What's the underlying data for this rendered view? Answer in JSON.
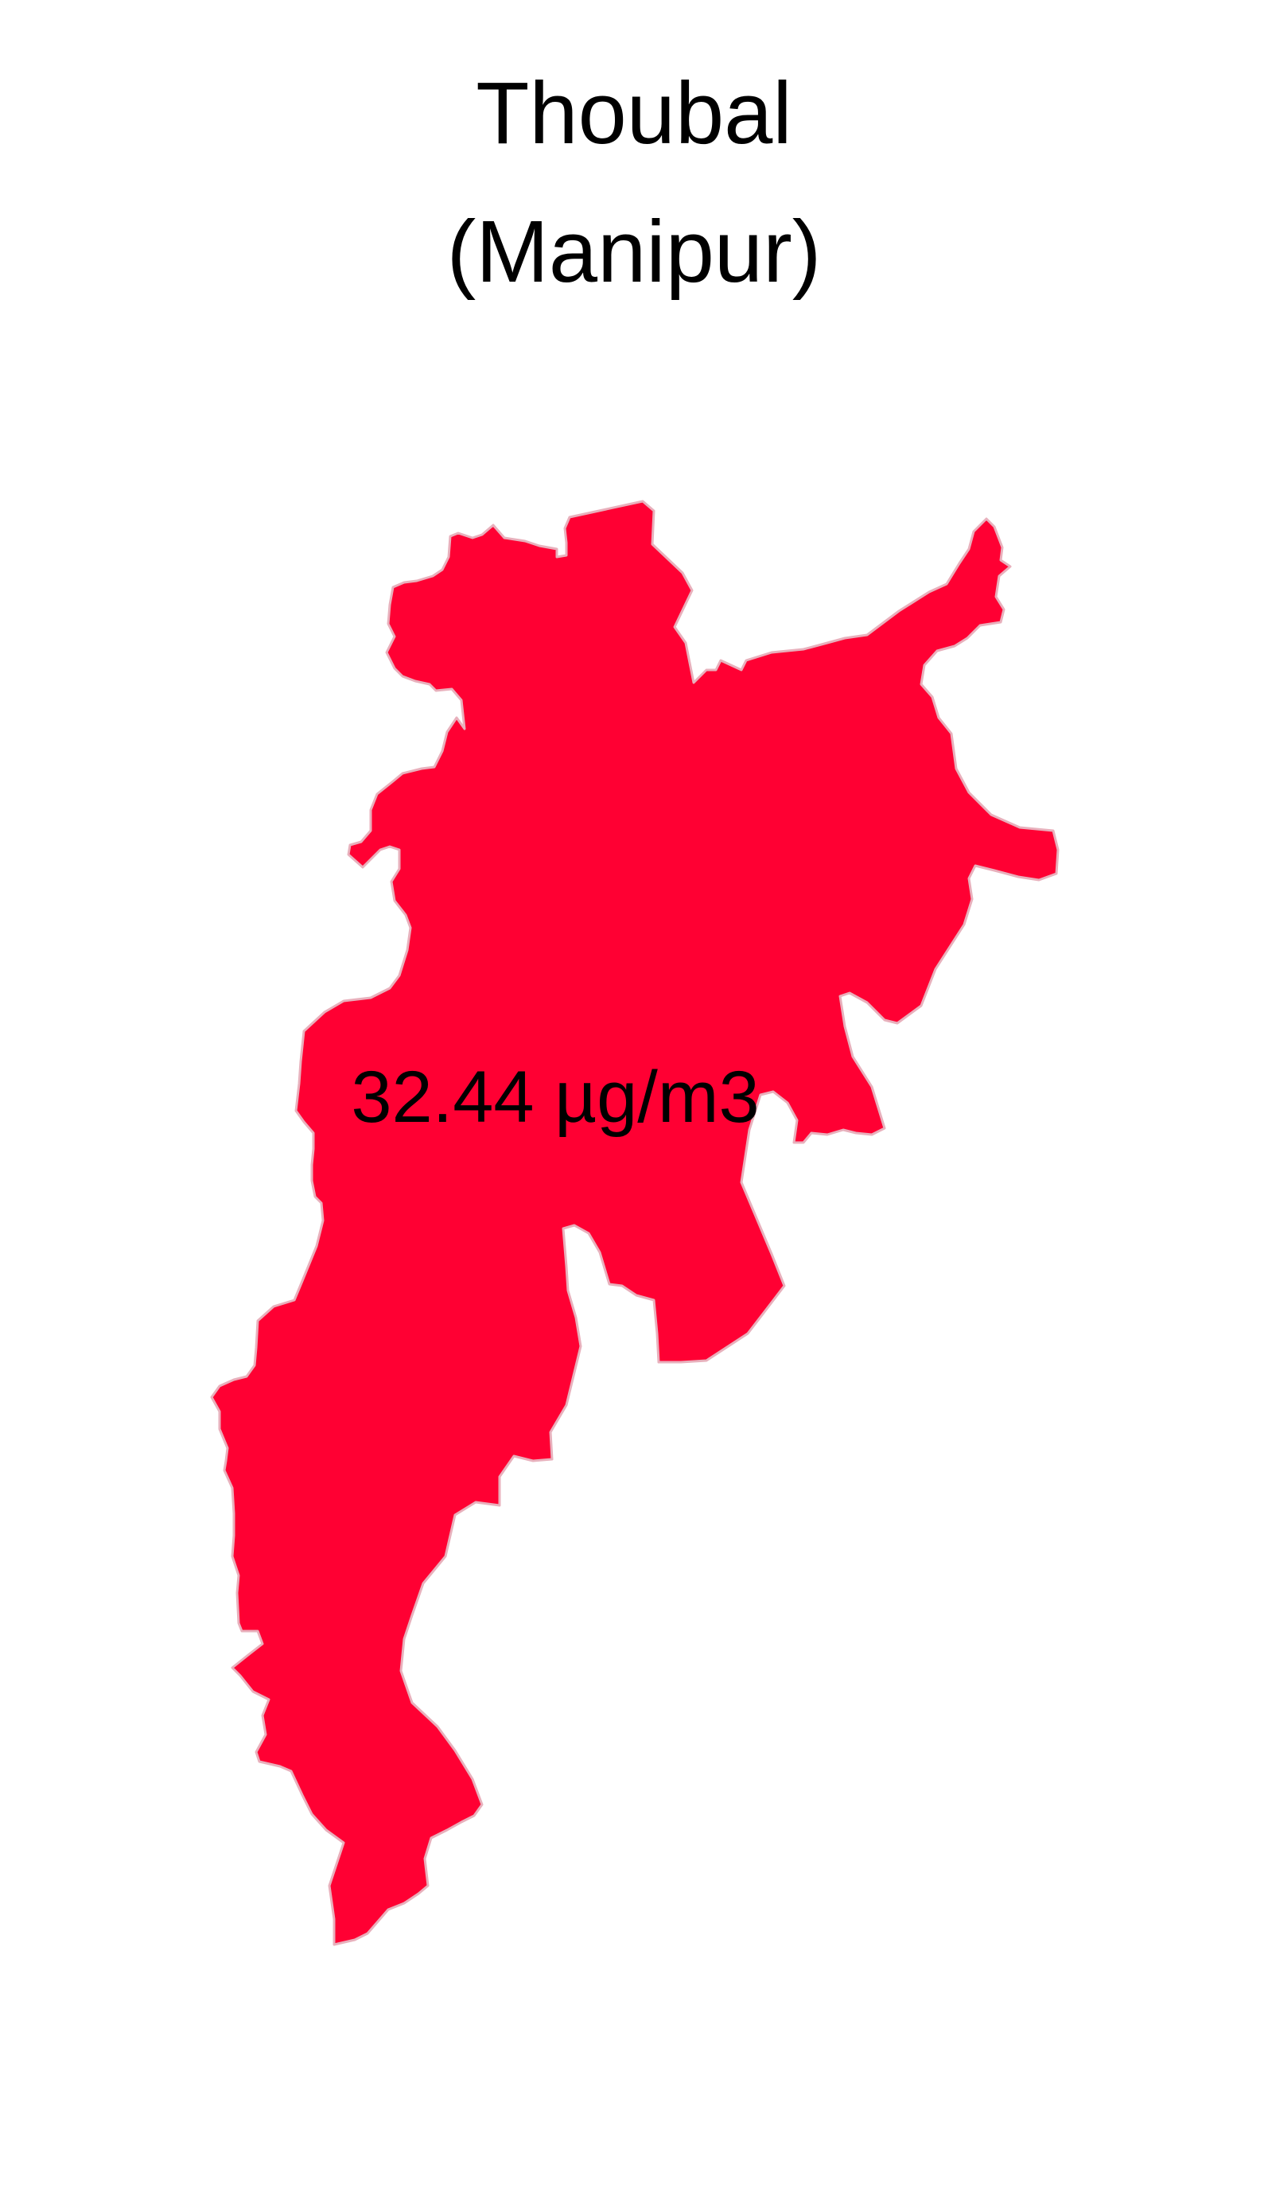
{
  "title": {
    "line1": "Thoubal",
    "line2": "(Manipur)"
  },
  "map": {
    "region_name": "Thoubal",
    "state": "Manipur",
    "region_fill": "#FF0033",
    "region_stroke": "#E8B0BC",
    "value_label": "32.44 µg/m3",
    "value": 32.44,
    "unit": "µg/m3"
  }
}
